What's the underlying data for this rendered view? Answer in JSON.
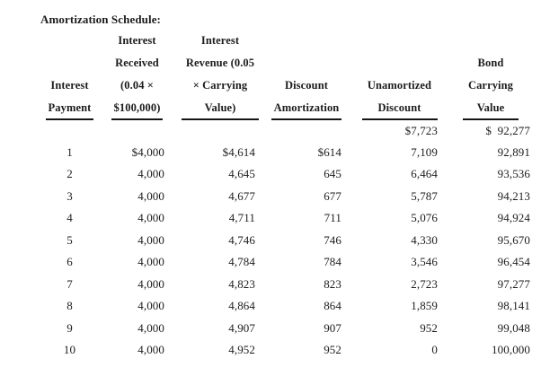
{
  "title": "Amortization Schedule:",
  "colors": {
    "text": "#1c1c1c",
    "background": "#ffffff",
    "rule": "#151515"
  },
  "table": {
    "columns": [
      {
        "id": "interest-payment",
        "lines": [
          "",
          "",
          "Interest",
          "Payment"
        ]
      },
      {
        "id": "interest-received",
        "lines": [
          "Interest",
          "Received",
          "(0.04 ×",
          "$100,000)"
        ]
      },
      {
        "id": "interest-revenue",
        "lines": [
          "Interest",
          "Revenue (0.05",
          "× Carrying",
          "Value)"
        ]
      },
      {
        "id": "discount-amortization",
        "lines": [
          "",
          "",
          "Discount",
          "Amortization"
        ]
      },
      {
        "id": "unamortized-discount",
        "lines": [
          "",
          "",
          "Unamortized",
          "Discount"
        ]
      },
      {
        "id": "bond-carrying-value",
        "lines": [
          "",
          "Bond",
          "Carrying",
          "Value"
        ]
      }
    ],
    "rows": [
      [
        "",
        "",
        "",
        "",
        "$7,723",
        "$  92,277"
      ],
      [
        "1",
        "$4,000",
        "$4,614",
        "$614",
        "7,109",
        "92,891"
      ],
      [
        "2",
        "4,000",
        "4,645",
        "645",
        "6,464",
        "93,536"
      ],
      [
        "3",
        "4,000",
        "4,677",
        "677",
        "5,787",
        "94,213"
      ],
      [
        "4",
        "4,000",
        "4,711",
        "711",
        "5,076",
        "94,924"
      ],
      [
        "5",
        "4,000",
        "4,746",
        "746",
        "4,330",
        "95,670"
      ],
      [
        "6",
        "4,000",
        "4,784",
        "784",
        "3,546",
        "96,454"
      ],
      [
        "7",
        "4,000",
        "4,823",
        "823",
        "2,723",
        "97,277"
      ],
      [
        "8",
        "4,000",
        "4,864",
        "864",
        "1,859",
        "98,141"
      ],
      [
        "9",
        "4,000",
        "4,907",
        "907",
        "952",
        "99,048"
      ],
      [
        "10",
        "4,000",
        "4,952",
        "952",
        "0",
        "100,000"
      ]
    ]
  }
}
